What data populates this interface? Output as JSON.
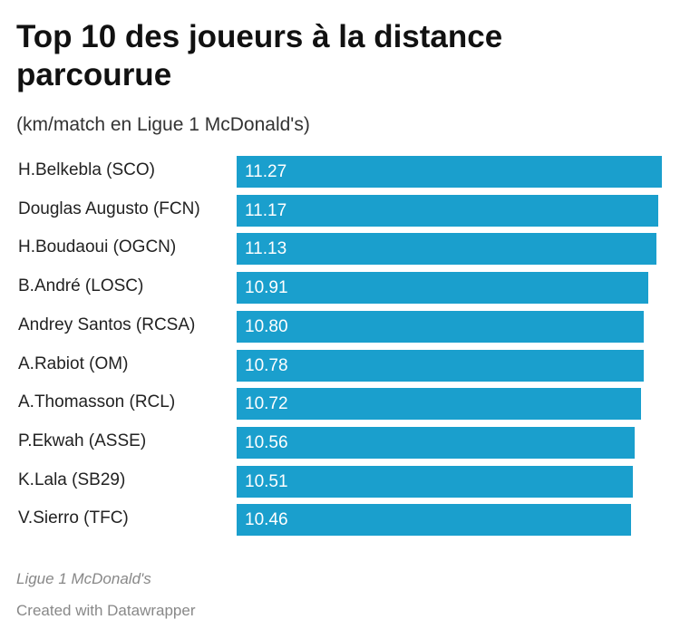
{
  "header": {
    "title": "Top 10 des joueurs à la distance parcourue",
    "subtitle": "(km/match en Ligue 1 McDonald's)"
  },
  "footer": {
    "source": "Ligue 1 McDonald's",
    "credit": "Created with Datawrapper"
  },
  "colors": {
    "bar": "#1a9fcd",
    "value_text": "#ffffff"
  },
  "chart_data": {
    "type": "bar",
    "orientation": "horizontal",
    "title": "Top 10 des joueurs à la distance parcourue",
    "subtitle": "(km/match en Ligue 1 McDonald's)",
    "xlabel": "",
    "ylabel": "",
    "unit": "km/match",
    "categories": [
      "H.Belkebla (SCO)",
      "Douglas Augusto (FCN)",
      "H.Boudaoui (OGCN)",
      "B.André (LOSC)",
      "Andrey Santos (RCSA)",
      "A.Rabiot (OM)",
      "A.Thomasson (RCL)",
      "P.Ekwah (ASSE)",
      "K.Lala (SB29)",
      "V.Sierro (TFC)"
    ],
    "values": [
      11.27,
      11.17,
      11.13,
      10.91,
      10.8,
      10.78,
      10.72,
      10.56,
      10.51,
      10.46
    ],
    "value_labels": [
      "11.27",
      "11.17",
      "11.13",
      "10.91",
      "10.80",
      "10.78",
      "10.72",
      "10.56",
      "10.51",
      "10.46"
    ],
    "xlim": [
      0,
      11.27
    ],
    "grid": false,
    "legend": "none"
  }
}
